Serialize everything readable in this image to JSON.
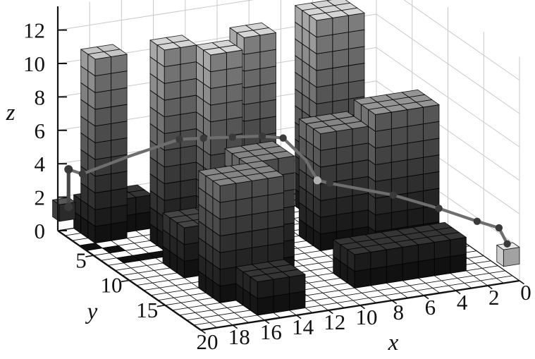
{
  "figure": {
    "axes": {
      "x": {
        "label": "x",
        "tick_labels": [
          20,
          18,
          16,
          14,
          12,
          10,
          8,
          6,
          4,
          2,
          0
        ],
        "tick_step": 2,
        "range": [
          0,
          20
        ]
      },
      "y": {
        "label": "y",
        "tick_labels": [
          5,
          10,
          15
        ],
        "tick_step": 5,
        "range": [
          0,
          20
        ]
      },
      "z": {
        "label": "z",
        "tick_labels": [
          0,
          2,
          4,
          6,
          8,
          10,
          12
        ],
        "tick_step": 2,
        "range": [
          0,
          12
        ]
      }
    }
  },
  "chart_data": {
    "type": "3d-voxel-obstacle-path",
    "description": "3D grid world (20 x 20, heights to 12) of stacked-cube buildings shaded dark at the bottom to light at the top, with a waypoint path from a dark start cube near (20,0,1) to a light goal cube near (0,20,1)",
    "grid": {
      "x_size": 20,
      "y_size": 20,
      "cell": 1,
      "z_top": 13.4
    },
    "buildings": [
      {
        "name": "tower-1",
        "x": 17,
        "y": 1,
        "w": 2,
        "d": 2,
        "h": 11
      },
      {
        "name": "tower-2",
        "x": 14,
        "y": 4,
        "w": 2,
        "d": 2,
        "h": 12
      },
      {
        "name": "tower-3",
        "x": 12,
        "y": 6,
        "w": 2,
        "d": 2,
        "h": 12
      },
      {
        "name": "tower-4",
        "x": 9,
        "y": 4,
        "w": 2,
        "d": 2,
        "h": 12
      },
      {
        "name": "tower-5",
        "x": 3,
        "y": 2,
        "w": 3,
        "d": 3,
        "h": 12
      },
      {
        "name": "mid-1",
        "x": 13,
        "y": 13,
        "w": 4,
        "d": 3,
        "h": 7
      },
      {
        "name": "mid-2",
        "x": 11,
        "y": 10,
        "w": 3,
        "d": 3,
        "h": 7
      },
      {
        "name": "mid-3",
        "x": 1,
        "y": 8,
        "w": 4,
        "d": 3,
        "h": 8
      },
      {
        "name": "mid-4",
        "x": 5,
        "y": 7,
        "w": 3,
        "d": 3,
        "h": 7
      },
      {
        "name": "low-1",
        "x": 15,
        "y": 0,
        "w": 4,
        "d": 2,
        "h": 2
      },
      {
        "name": "low-2",
        "x": 14,
        "y": 8,
        "w": 3,
        "d": 3,
        "h": 3
      },
      {
        "name": "low-3",
        "x": 13,
        "y": 16,
        "w": 3,
        "d": 3,
        "h": 2
      },
      {
        "name": "low-4",
        "x": 2,
        "y": 14,
        "w": 7,
        "d": 3,
        "h": 2
      }
    ],
    "dark_floor_cells": [
      [
        18,
        4
      ],
      [
        19,
        3
      ],
      [
        17,
        6
      ],
      [
        18,
        6
      ],
      [
        16,
        6
      ]
    ],
    "start_marker": {
      "x": 19.35,
      "y": 0.05,
      "w": 1,
      "d": 0.95,
      "z": 0.9,
      "h": 1,
      "shade": "dark"
    },
    "goal_marker": {
      "x": 0.0,
      "y": 19.05,
      "w": 1,
      "d": 0.95,
      "z": 1.0,
      "h": 1,
      "shade": "light"
    },
    "path_points": [
      [
        19.55,
        0.5,
        1.5,
        1
      ],
      [
        19.55,
        0.5,
        3.75,
        1
      ],
      [
        19.0,
        1.2,
        3.6,
        1
      ],
      [
        16.8,
        2.8,
        4.8,
        0
      ],
      [
        14.3,
        4.3,
        5.9,
        1
      ],
      [
        13.1,
        5.0,
        6.0,
        1
      ],
      [
        11.6,
        5.7,
        6.05,
        1
      ],
      [
        10.0,
        6.3,
        6.05,
        1
      ],
      [
        9.0,
        7.0,
        6.0,
        1
      ],
      [
        8.4,
        8.8,
        5.15,
        0
      ],
      [
        8.15,
        9.9,
        4.2,
        2
      ],
      [
        7.6,
        10.4,
        4.1,
        1
      ],
      [
        4.6,
        12.6,
        3.6,
        1
      ],
      [
        2.5,
        14.3,
        3.0,
        1
      ],
      [
        1.0,
        16.3,
        2.6,
        1
      ],
      [
        0.3,
        17.8,
        2.55,
        1
      ],
      [
        0.5,
        19.4,
        2.1,
        1
      ]
    ],
    "colors": {
      "background": "#ffffff",
      "cube_bottom": "#171717",
      "cube_top": "#cfcfcf",
      "cube_edge": "#000000",
      "wall_line": "#c9c9c9",
      "floor_line": "#1b1b1b",
      "dark_cell": "#101010",
      "path_line": "#6e6e6e",
      "path_vertical_line": "#474747",
      "path_dot": "#3a3a3a",
      "path_dot_light": "#b0b0b0",
      "axis_line": "#111111"
    }
  }
}
